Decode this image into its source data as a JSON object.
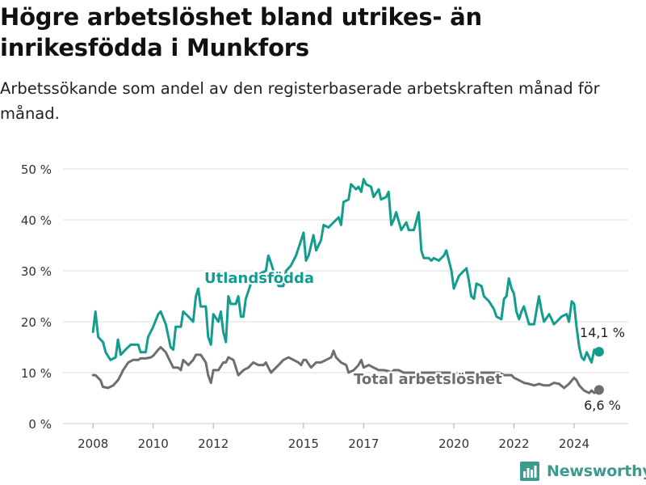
{
  "header": {
    "title": "Högre arbetslöshet bland utrikes- än inrikesfödda i Munkfors",
    "subtitle": "Arbetssökande som andel av den registerbaserade arbetskraften månad för månad."
  },
  "brand": {
    "name": "Newsworthy",
    "logo_icon": "bar-chart-icon"
  },
  "colors": {
    "utlandsfodda": "#139d8f",
    "total": "#6e6e70",
    "grid": "#dddddd",
    "axis_text": "#333333"
  },
  "chart_data": {
    "type": "line",
    "title": "Högre arbetslöshet bland utrikes- än inrikesfödda i Munkfors",
    "subtitle": "Arbetssökande som andel av den registerbaserade arbetskraften månad för månad.",
    "xlabel": "",
    "ylabel": "",
    "xlim": [
      2007.0,
      2025.8
    ],
    "ylim": [
      0,
      50
    ],
    "x_ticks": [
      2008,
      2010,
      2012,
      2015,
      2017,
      2020,
      2022,
      2024
    ],
    "x_tick_labels": [
      "2008",
      "2010",
      "2012",
      "2015",
      "2017",
      "2020",
      "2022",
      "2024"
    ],
    "y_ticks": [
      0,
      10,
      20,
      30,
      40,
      50
    ],
    "y_tick_labels": [
      "0 %",
      "10 %",
      "20 %",
      "30 %",
      "40 %",
      "50 %"
    ],
    "grid": true,
    "legend": "inline labels",
    "series": [
      {
        "name": "Utlandsfödda",
        "color": "#139d8f",
        "label": "Utlandsfödda",
        "end_label": "14,1 %",
        "points": [
          [
            2008.0,
            18.0
          ],
          [
            2008.08,
            22.0
          ],
          [
            2008.17,
            17.0
          ],
          [
            2008.33,
            16.0
          ],
          [
            2008.42,
            14.0
          ],
          [
            2008.58,
            12.5
          ],
          [
            2008.75,
            13.0
          ],
          [
            2008.83,
            16.5
          ],
          [
            2008.92,
            13.5
          ],
          [
            2009.08,
            14.5
          ],
          [
            2009.25,
            15.5
          ],
          [
            2009.5,
            15.5
          ],
          [
            2009.58,
            14.0
          ],
          [
            2009.75,
            14.0
          ],
          [
            2009.83,
            17.0
          ],
          [
            2010.0,
            19.0
          ],
          [
            2010.17,
            21.5
          ],
          [
            2010.25,
            22.0
          ],
          [
            2010.42,
            19.5
          ],
          [
            2010.58,
            15.0
          ],
          [
            2010.67,
            14.5
          ],
          [
            2010.75,
            19.0
          ],
          [
            2010.92,
            19.0
          ],
          [
            2011.0,
            22.0
          ],
          [
            2011.17,
            21.0
          ],
          [
            2011.33,
            20.0
          ],
          [
            2011.42,
            25.0
          ],
          [
            2011.5,
            26.5
          ],
          [
            2011.58,
            23.0
          ],
          [
            2011.75,
            23.0
          ],
          [
            2011.83,
            17.0
          ],
          [
            2011.92,
            15.5
          ],
          [
            2012.0,
            21.5
          ],
          [
            2012.17,
            20.0
          ],
          [
            2012.25,
            22.0
          ],
          [
            2012.33,
            18.0
          ],
          [
            2012.42,
            16.0
          ],
          [
            2012.5,
            25.0
          ],
          [
            2012.58,
            23.5
          ],
          [
            2012.75,
            23.5
          ],
          [
            2012.83,
            25.0
          ],
          [
            2012.92,
            21.0
          ],
          [
            2013.0,
            21.0
          ],
          [
            2013.08,
            24.5
          ],
          [
            2013.25,
            27.5
          ],
          [
            2013.42,
            29.0
          ],
          [
            2013.58,
            29.5
          ],
          [
            2013.75,
            30.0
          ],
          [
            2013.83,
            33.0
          ],
          [
            2013.92,
            31.5
          ],
          [
            2014.0,
            30.0
          ],
          [
            2014.17,
            27.0
          ],
          [
            2014.33,
            27.0
          ],
          [
            2014.42,
            30.0
          ],
          [
            2014.58,
            31.0
          ],
          [
            2014.75,
            33.0
          ],
          [
            2014.92,
            36.0
          ],
          [
            2015.0,
            37.5
          ],
          [
            2015.08,
            32.0
          ],
          [
            2015.17,
            33.0
          ],
          [
            2015.33,
            37.0
          ],
          [
            2015.42,
            34.0
          ],
          [
            2015.58,
            36.0
          ],
          [
            2015.67,
            39.0
          ],
          [
            2015.83,
            38.5
          ],
          [
            2016.0,
            39.5
          ],
          [
            2016.17,
            40.5
          ],
          [
            2016.25,
            39.0
          ],
          [
            2016.33,
            43.5
          ],
          [
            2016.5,
            44.0
          ],
          [
            2016.58,
            47.0
          ],
          [
            2016.75,
            46.0
          ],
          [
            2016.83,
            46.5
          ],
          [
            2016.92,
            45.5
          ],
          [
            2017.0,
            48.0
          ],
          [
            2017.08,
            47.0
          ],
          [
            2017.25,
            46.5
          ],
          [
            2017.33,
            44.5
          ],
          [
            2017.5,
            46.0
          ],
          [
            2017.58,
            44.0
          ],
          [
            2017.75,
            44.5
          ],
          [
            2017.83,
            45.5
          ],
          [
            2017.92,
            39.0
          ],
          [
            2018.0,
            40.0
          ],
          [
            2018.08,
            41.5
          ],
          [
            2018.25,
            38.0
          ],
          [
            2018.42,
            39.5
          ],
          [
            2018.5,
            38.0
          ],
          [
            2018.67,
            38.0
          ],
          [
            2018.83,
            41.5
          ],
          [
            2018.92,
            34.0
          ],
          [
            2019.0,
            32.5
          ],
          [
            2019.17,
            32.5
          ],
          [
            2019.25,
            32.0
          ],
          [
            2019.33,
            32.5
          ],
          [
            2019.5,
            32.0
          ],
          [
            2019.67,
            33.0
          ],
          [
            2019.75,
            34.0
          ],
          [
            2019.92,
            30.0
          ],
          [
            2020.0,
            26.5
          ],
          [
            2020.17,
            29.0
          ],
          [
            2020.25,
            29.5
          ],
          [
            2020.42,
            30.5
          ],
          [
            2020.5,
            28.0
          ],
          [
            2020.58,
            25.0
          ],
          [
            2020.67,
            24.5
          ],
          [
            2020.75,
            27.5
          ],
          [
            2020.92,
            27.0
          ],
          [
            2021.0,
            25.0
          ],
          [
            2021.17,
            24.0
          ],
          [
            2021.33,
            22.5
          ],
          [
            2021.42,
            21.0
          ],
          [
            2021.58,
            20.5
          ],
          [
            2021.67,
            24.5
          ],
          [
            2021.75,
            25.0
          ],
          [
            2021.83,
            28.5
          ],
          [
            2021.92,
            26.5
          ],
          [
            2022.0,
            25.5
          ],
          [
            2022.08,
            22.0
          ],
          [
            2022.17,
            20.5
          ],
          [
            2022.25,
            22.0
          ],
          [
            2022.33,
            23.0
          ],
          [
            2022.5,
            19.5
          ],
          [
            2022.67,
            19.5
          ],
          [
            2022.83,
            25.0
          ],
          [
            2022.92,
            22.0
          ],
          [
            2023.0,
            20.0
          ],
          [
            2023.17,
            21.5
          ],
          [
            2023.25,
            20.5
          ],
          [
            2023.33,
            19.5
          ],
          [
            2023.5,
            20.5
          ],
          [
            2023.58,
            21.0
          ],
          [
            2023.75,
            21.5
          ],
          [
            2023.83,
            20.0
          ],
          [
            2023.92,
            24.0
          ],
          [
            2024.0,
            23.5
          ],
          [
            2024.08,
            19.0
          ],
          [
            2024.17,
            15.0
          ],
          [
            2024.25,
            13.0
          ],
          [
            2024.33,
            12.5
          ],
          [
            2024.42,
            14.0
          ],
          [
            2024.58,
            12.0
          ],
          [
            2024.67,
            14.5
          ],
          [
            2024.83,
            14.1
          ]
        ]
      },
      {
        "name": "Total arbetslöshet",
        "color": "#6e6e70",
        "label": "Total arbetslöshet",
        "end_label": "6,6 %",
        "points": [
          [
            2008.0,
            9.5
          ],
          [
            2008.08,
            9.5
          ],
          [
            2008.25,
            8.5
          ],
          [
            2008.33,
            7.2
          ],
          [
            2008.5,
            7.0
          ],
          [
            2008.67,
            7.5
          ],
          [
            2008.83,
            8.5
          ],
          [
            2008.92,
            9.5
          ],
          [
            2009.0,
            10.5
          ],
          [
            2009.17,
            12.0
          ],
          [
            2009.33,
            12.5
          ],
          [
            2009.5,
            12.5
          ],
          [
            2009.58,
            12.8
          ],
          [
            2009.75,
            12.8
          ],
          [
            2009.92,
            13.0
          ],
          [
            2010.0,
            13.3
          ],
          [
            2010.17,
            14.5
          ],
          [
            2010.25,
            15.0
          ],
          [
            2010.42,
            14.0
          ],
          [
            2010.5,
            13.0
          ],
          [
            2010.67,
            11.0
          ],
          [
            2010.83,
            11.0
          ],
          [
            2010.92,
            10.5
          ],
          [
            2011.0,
            12.5
          ],
          [
            2011.17,
            11.5
          ],
          [
            2011.33,
            12.5
          ],
          [
            2011.42,
            13.5
          ],
          [
            2011.58,
            13.5
          ],
          [
            2011.75,
            12.0
          ],
          [
            2011.83,
            9.5
          ],
          [
            2011.92,
            8.0
          ],
          [
            2012.0,
            10.5
          ],
          [
            2012.17,
            10.5
          ],
          [
            2012.33,
            12.0
          ],
          [
            2012.42,
            12.0
          ],
          [
            2012.5,
            13.0
          ],
          [
            2012.67,
            12.5
          ],
          [
            2012.75,
            11.0
          ],
          [
            2012.83,
            9.5
          ],
          [
            2012.92,
            10.0
          ],
          [
            2013.0,
            10.5
          ],
          [
            2013.17,
            11.0
          ],
          [
            2013.33,
            12.0
          ],
          [
            2013.5,
            11.5
          ],
          [
            2013.67,
            11.5
          ],
          [
            2013.75,
            12.0
          ],
          [
            2013.83,
            11.0
          ],
          [
            2013.92,
            10.0
          ],
          [
            2014.0,
            10.5
          ],
          [
            2014.17,
            11.5
          ],
          [
            2014.33,
            12.5
          ],
          [
            2014.5,
            13.0
          ],
          [
            2014.67,
            12.5
          ],
          [
            2014.83,
            12.0
          ],
          [
            2014.92,
            11.5
          ],
          [
            2015.0,
            12.5
          ],
          [
            2015.08,
            12.5
          ],
          [
            2015.25,
            11.0
          ],
          [
            2015.42,
            12.0
          ],
          [
            2015.58,
            12.0
          ],
          [
            2015.75,
            12.5
          ],
          [
            2015.92,
            13.0
          ],
          [
            2016.0,
            14.3
          ],
          [
            2016.08,
            13.0
          ],
          [
            2016.25,
            12.0
          ],
          [
            2016.42,
            11.5
          ],
          [
            2016.5,
            10.0
          ],
          [
            2016.67,
            10.5
          ],
          [
            2016.83,
            11.5
          ],
          [
            2016.92,
            12.5
          ],
          [
            2017.0,
            11.0
          ],
          [
            2017.17,
            11.5
          ],
          [
            2017.33,
            11.0
          ],
          [
            2017.5,
            10.5
          ],
          [
            2017.67,
            10.5
          ],
          [
            2017.83,
            10.3
          ],
          [
            2017.92,
            10.0
          ],
          [
            2018.0,
            10.5
          ],
          [
            2018.17,
            10.5
          ],
          [
            2018.33,
            10.0
          ],
          [
            2018.5,
            10.0
          ],
          [
            2018.67,
            10.0
          ],
          [
            2018.83,
            10.0
          ],
          [
            2019.0,
            10.0
          ],
          [
            2019.17,
            10.0
          ],
          [
            2019.33,
            10.0
          ],
          [
            2019.5,
            10.0
          ],
          [
            2019.67,
            10.0
          ],
          [
            2019.83,
            10.0
          ],
          [
            2020.0,
            10.0
          ],
          [
            2020.17,
            10.0
          ],
          [
            2020.33,
            10.0
          ],
          [
            2020.5,
            10.0
          ],
          [
            2020.67,
            10.0
          ],
          [
            2020.83,
            10.0
          ],
          [
            2021.0,
            10.0
          ],
          [
            2021.17,
            10.0
          ],
          [
            2021.33,
            10.0
          ],
          [
            2021.5,
            10.0
          ],
          [
            2021.67,
            9.5
          ],
          [
            2021.83,
            9.5
          ],
          [
            2021.92,
            9.5
          ],
          [
            2022.0,
            9.0
          ],
          [
            2022.17,
            8.5
          ],
          [
            2022.33,
            8.0
          ],
          [
            2022.5,
            7.8
          ],
          [
            2022.67,
            7.5
          ],
          [
            2022.83,
            7.8
          ],
          [
            2023.0,
            7.5
          ],
          [
            2023.17,
            7.5
          ],
          [
            2023.33,
            8.0
          ],
          [
            2023.5,
            7.8
          ],
          [
            2023.67,
            7.0
          ],
          [
            2023.83,
            7.8
          ],
          [
            2024.0,
            9.0
          ],
          [
            2024.08,
            8.5
          ],
          [
            2024.17,
            7.5
          ],
          [
            2024.33,
            6.5
          ],
          [
            2024.5,
            6.0
          ],
          [
            2024.58,
            6.5
          ],
          [
            2024.67,
            6.0
          ],
          [
            2024.83,
            6.6
          ]
        ]
      }
    ]
  }
}
